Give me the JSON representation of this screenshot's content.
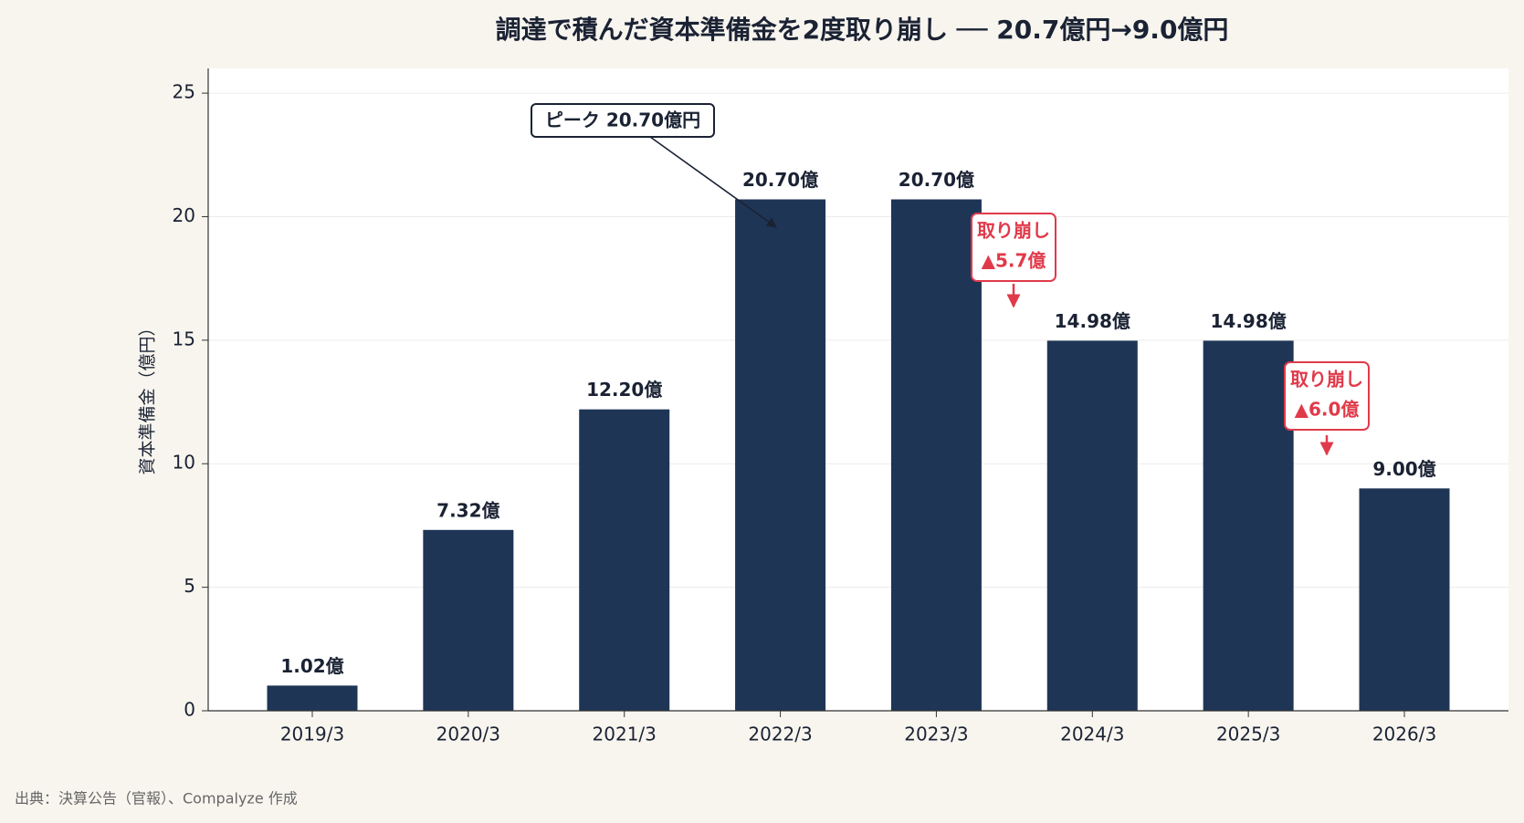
{
  "chart_data": {
    "type": "bar",
    "title": "調達で積んだ資本準備金を2度取り崩し ── 20.7億円→9.0億円",
    "y_label": "資本準備金（億円）",
    "categories": [
      "2019/3",
      "2020/3",
      "2021/3",
      "2022/3",
      "2023/3",
      "2024/3",
      "2025/3",
      "2026/3"
    ],
    "values": [
      1.02,
      7.32,
      12.2,
      20.7,
      20.7,
      14.98,
      14.98,
      9.0
    ],
    "value_labels": [
      "1.02億",
      "7.32億",
      "12.20億",
      "20.70億",
      "20.70億",
      "14.98億",
      "14.98億",
      "9.00億"
    ],
    "color": "#1f3556",
    "ylim": [
      0,
      26
    ],
    "yticks": [
      0,
      5,
      10,
      15,
      20,
      25
    ],
    "grid": true,
    "annotations": [
      {
        "text": "ピーク 20.70億円"
      },
      {
        "lines": [
          "取り崩し",
          "▲5.7億"
        ]
      },
      {
        "lines": [
          "取り崩し",
          "▲6.0億"
        ]
      }
    ],
    "source": "出典：決算公告（官報）、Compalyze 作成"
  }
}
